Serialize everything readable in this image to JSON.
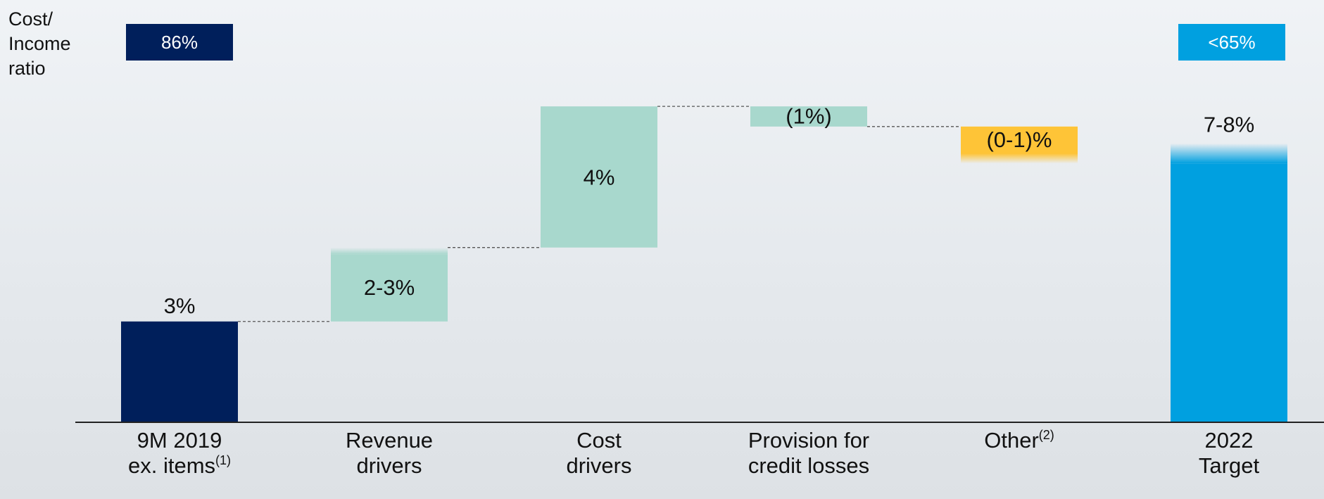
{
  "colors": {
    "navy": "#001f5b",
    "mint": "#a8d8cd",
    "amber": "#fec437",
    "blue": "#00a0e0",
    "baseline": "#222222",
    "connector": "#555555"
  },
  "y_axis_title": [
    "Cost/",
    "Income",
    "ratio"
  ],
  "ratio_boxes": [
    {
      "label": "86%",
      "color": "#001f5b"
    },
    {
      "label": "<65%",
      "color": "#00a0e0"
    }
  ],
  "category_labels": [
    {
      "line1": "9M 2019",
      "line2": "ex. items",
      "sup2": "(1)"
    },
    {
      "line1": "Revenue",
      "line2": "drivers"
    },
    {
      "line1": "Cost",
      "line2": "drivers"
    },
    {
      "line1": "Provision for",
      "line2": "credit losses"
    },
    {
      "line1": "Other",
      "sup1": "(2)",
      "line2": ""
    },
    {
      "line1": "2022",
      "line2": "Target"
    }
  ],
  "chart_data": {
    "type": "bar",
    "subtype": "waterfall",
    "categories": [
      "9M 2019 ex. items",
      "Revenue drivers",
      "Cost drivers",
      "Provision for credit losses",
      "Other",
      "2022 Target"
    ],
    "bars": [
      {
        "kind": "total",
        "start": 0,
        "end": 3,
        "label": "3%",
        "color": "#001f5b",
        "faded_top": false
      },
      {
        "kind": "delta",
        "start": 3,
        "end": 5,
        "range_end": 5.2,
        "label": "2-3%",
        "color": "#a8d8cd",
        "faded_top": true
      },
      {
        "kind": "delta",
        "start": 5.2,
        "end": 9.4,
        "label": "4%",
        "color": "#a8d8cd",
        "faded_top": false
      },
      {
        "kind": "delta",
        "start": 9.4,
        "end": 8.8,
        "label": "(1%)",
        "color": "#a8d8cd",
        "faded_top": false
      },
      {
        "kind": "delta",
        "start": 8.8,
        "end": 8.0,
        "range_end": 7.7,
        "label": "(0-1)%",
        "color": "#fec437",
        "faded_top": false,
        "faded_bottom": true
      },
      {
        "kind": "total",
        "start": 0,
        "end": 7.7,
        "range_end": 8.3,
        "label": "7-8%",
        "color": "#00a0e0",
        "faded_top": true
      }
    ],
    "ylim": [
      0,
      10
    ],
    "grid": false,
    "legend": "none"
  }
}
